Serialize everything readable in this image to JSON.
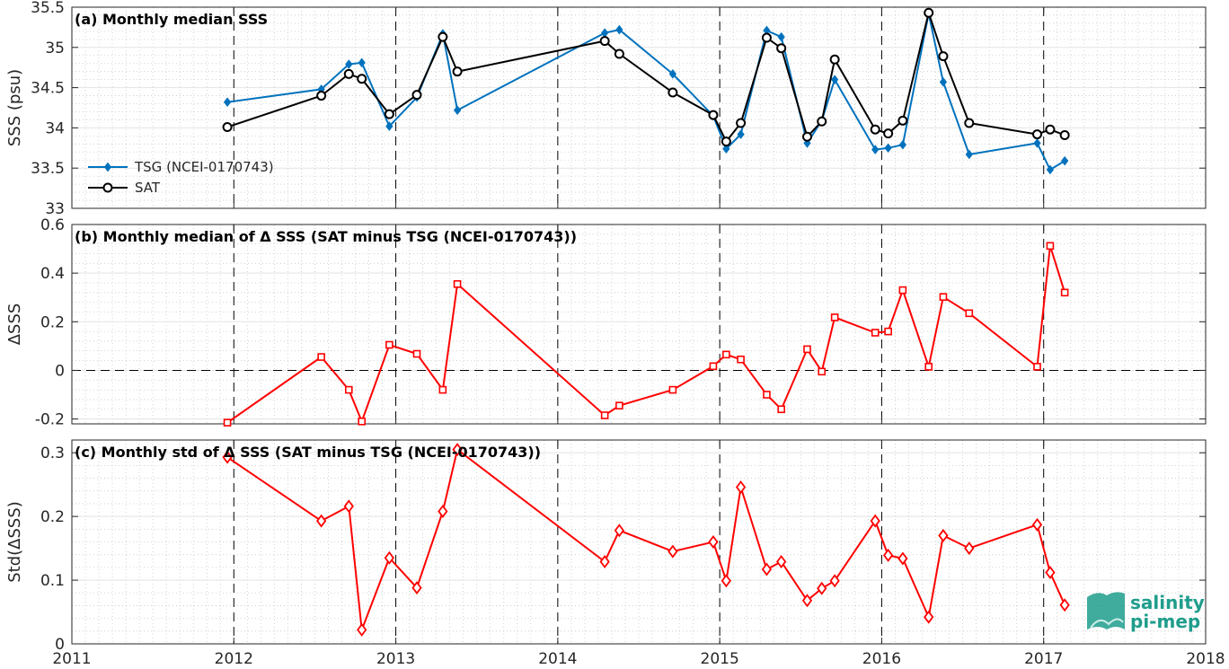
{
  "chart_data": [
    {
      "type": "line",
      "title": "(a) Monthly median SSS",
      "ylabel": "SSS (psu)",
      "xlim": [
        2011,
        2018
      ],
      "ylim": [
        33,
        35.5
      ],
      "yticks": [
        33,
        33.5,
        34,
        34.5,
        35,
        35.5
      ],
      "yticklabels": [
        "33",
        "33.5",
        "34",
        "34.5",
        "35",
        "35.5"
      ],
      "grid": "minor dotted",
      "legend_position": "lower-left",
      "series": [
        {
          "name": "TSG (NCEI-0170743)",
          "color": "#0072bd",
          "marker": "diamond-filled",
          "x": [
            2011.96,
            2012.54,
            2012.71,
            2012.79,
            2012.96,
            2013.13,
            2013.29,
            2013.38,
            2014.29,
            2014.38,
            2014.71,
            2014.96,
            2015.04,
            2015.13,
            2015.29,
            2015.38,
            2015.54,
            2015.63,
            2015.71,
            2015.96,
            2016.04,
            2016.13,
            2016.29,
            2016.38,
            2016.54,
            2016.96,
            2017.04,
            2017.13
          ],
          "values": [
            34.32,
            34.48,
            34.79,
            34.81,
            34.02,
            34.38,
            35.17,
            34.22,
            35.18,
            35.22,
            34.67,
            34.15,
            33.74,
            33.92,
            35.21,
            35.13,
            33.81,
            34.09,
            34.6,
            33.73,
            33.75,
            33.79,
            35.42,
            34.57,
            33.67,
            33.81,
            33.48,
            33.59
          ]
        },
        {
          "name": "SAT",
          "color": "#000000",
          "marker": "circle-open",
          "x": [
            2011.96,
            2012.54,
            2012.71,
            2012.79,
            2012.96,
            2013.13,
            2013.29,
            2013.38,
            2014.29,
            2014.38,
            2014.71,
            2014.96,
            2015.04,
            2015.13,
            2015.29,
            2015.38,
            2015.54,
            2015.63,
            2015.71,
            2015.96,
            2016.04,
            2016.13,
            2016.29,
            2016.38,
            2016.54,
            2016.96,
            2017.04,
            2017.13
          ],
          "values": [
            34.01,
            34.4,
            34.67,
            34.61,
            34.17,
            34.41,
            35.13,
            34.7,
            35.08,
            34.92,
            34.44,
            34.16,
            33.83,
            34.06,
            35.12,
            34.99,
            33.89,
            34.08,
            34.85,
            33.98,
            33.93,
            34.09,
            35.43,
            34.89,
            34.06,
            33.92,
            33.98,
            33.91
          ]
        }
      ]
    },
    {
      "type": "line",
      "title": "(b) Monthly median of Δ SSS (SAT minus TSG (NCEI-0170743))",
      "ylabel": "ΔSSS",
      "xlim": [
        2011,
        2018
      ],
      "ylim": [
        -0.22,
        0.6
      ],
      "yticks": [
        -0.2,
        0,
        0.2,
        0.4,
        0.6
      ],
      "yticklabels": [
        "-0.2",
        "0",
        "0.2",
        "0.4",
        "0.6"
      ],
      "zero_line": true,
      "grid": "minor dotted",
      "series": [
        {
          "color": "#ff0000",
          "marker": "square-open",
          "x": [
            2011.96,
            2012.54,
            2012.71,
            2012.79,
            2012.96,
            2013.13,
            2013.29,
            2013.38,
            2014.29,
            2014.38,
            2014.71,
            2014.96,
            2015.04,
            2015.13,
            2015.29,
            2015.38,
            2015.54,
            2015.63,
            2015.71,
            2015.96,
            2016.04,
            2016.13,
            2016.29,
            2016.38,
            2016.54,
            2016.96,
            2017.04,
            2017.13
          ],
          "values": [
            -0.215,
            0.055,
            -0.08,
            -0.21,
            0.105,
            0.068,
            -0.08,
            0.355,
            -0.185,
            -0.145,
            -0.08,
            0.017,
            0.065,
            0.045,
            -0.1,
            -0.16,
            0.087,
            -0.005,
            0.218,
            0.155,
            0.16,
            0.33,
            0.015,
            0.302,
            0.235,
            0.015,
            0.512,
            0.32
          ]
        }
      ]
    },
    {
      "type": "line",
      "title": "(c) Monthly std of Δ SSS (SAT minus TSG (NCEI-0170743))",
      "ylabel": "Std(ΔSSS)",
      "xlim": [
        2011,
        2018
      ],
      "ylim": [
        0,
        0.32
      ],
      "yticks": [
        0,
        0.1,
        0.2,
        0.3
      ],
      "yticklabels": [
        "0",
        "0.1",
        "0.2",
        "0.3"
      ],
      "xticks": [
        2011,
        2012,
        2013,
        2014,
        2015,
        2016,
        2017,
        2018
      ],
      "xticklabels": [
        "2011",
        "2012",
        "2013",
        "2014",
        "2015",
        "2016",
        "2017",
        "2018"
      ],
      "grid": "minor dotted",
      "series": [
        {
          "color": "#ff0000",
          "marker": "diamond-open",
          "x": [
            2011.96,
            2012.54,
            2012.71,
            2012.79,
            2012.96,
            2013.13,
            2013.29,
            2013.38,
            2014.29,
            2014.38,
            2014.71,
            2014.96,
            2015.04,
            2015.13,
            2015.29,
            2015.38,
            2015.54,
            2015.63,
            2015.71,
            2015.96,
            2016.04,
            2016.13,
            2016.29,
            2016.38,
            2016.54,
            2016.96,
            2017.04,
            2017.13
          ],
          "values": [
            0.293,
            0.193,
            0.216,
            0.022,
            0.135,
            0.088,
            0.208,
            0.305,
            0.129,
            0.178,
            0.145,
            0.16,
            0.099,
            0.246,
            0.117,
            0.129,
            0.068,
            0.087,
            0.099,
            0.193,
            0.139,
            0.134,
            0.042,
            0.17,
            0.15,
            0.187,
            0.112,
            0.061
          ]
        }
      ]
    }
  ],
  "logo": {
    "line1": "salinity",
    "line2": "pi-mep",
    "color": "#1f9d8c"
  }
}
